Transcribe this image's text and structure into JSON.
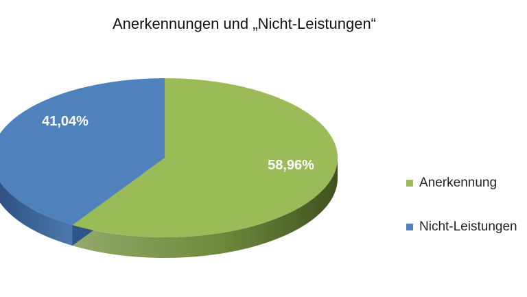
{
  "chart_data": {
    "type": "pie",
    "title": "Anerkennungen und „Nicht-Leistungen“",
    "slices": [
      {
        "name": "Anerkennung",
        "value": 58.96,
        "label": "58,96%",
        "color": "#9bbb59",
        "side_color": "#5d7a2e"
      },
      {
        "name": "Nicht-Leistungen",
        "value": 41.04,
        "label": "41,04%",
        "color": "#4f81bd",
        "side_color": "#2e5587"
      }
    ],
    "legend_position": "right",
    "style": "3d"
  }
}
